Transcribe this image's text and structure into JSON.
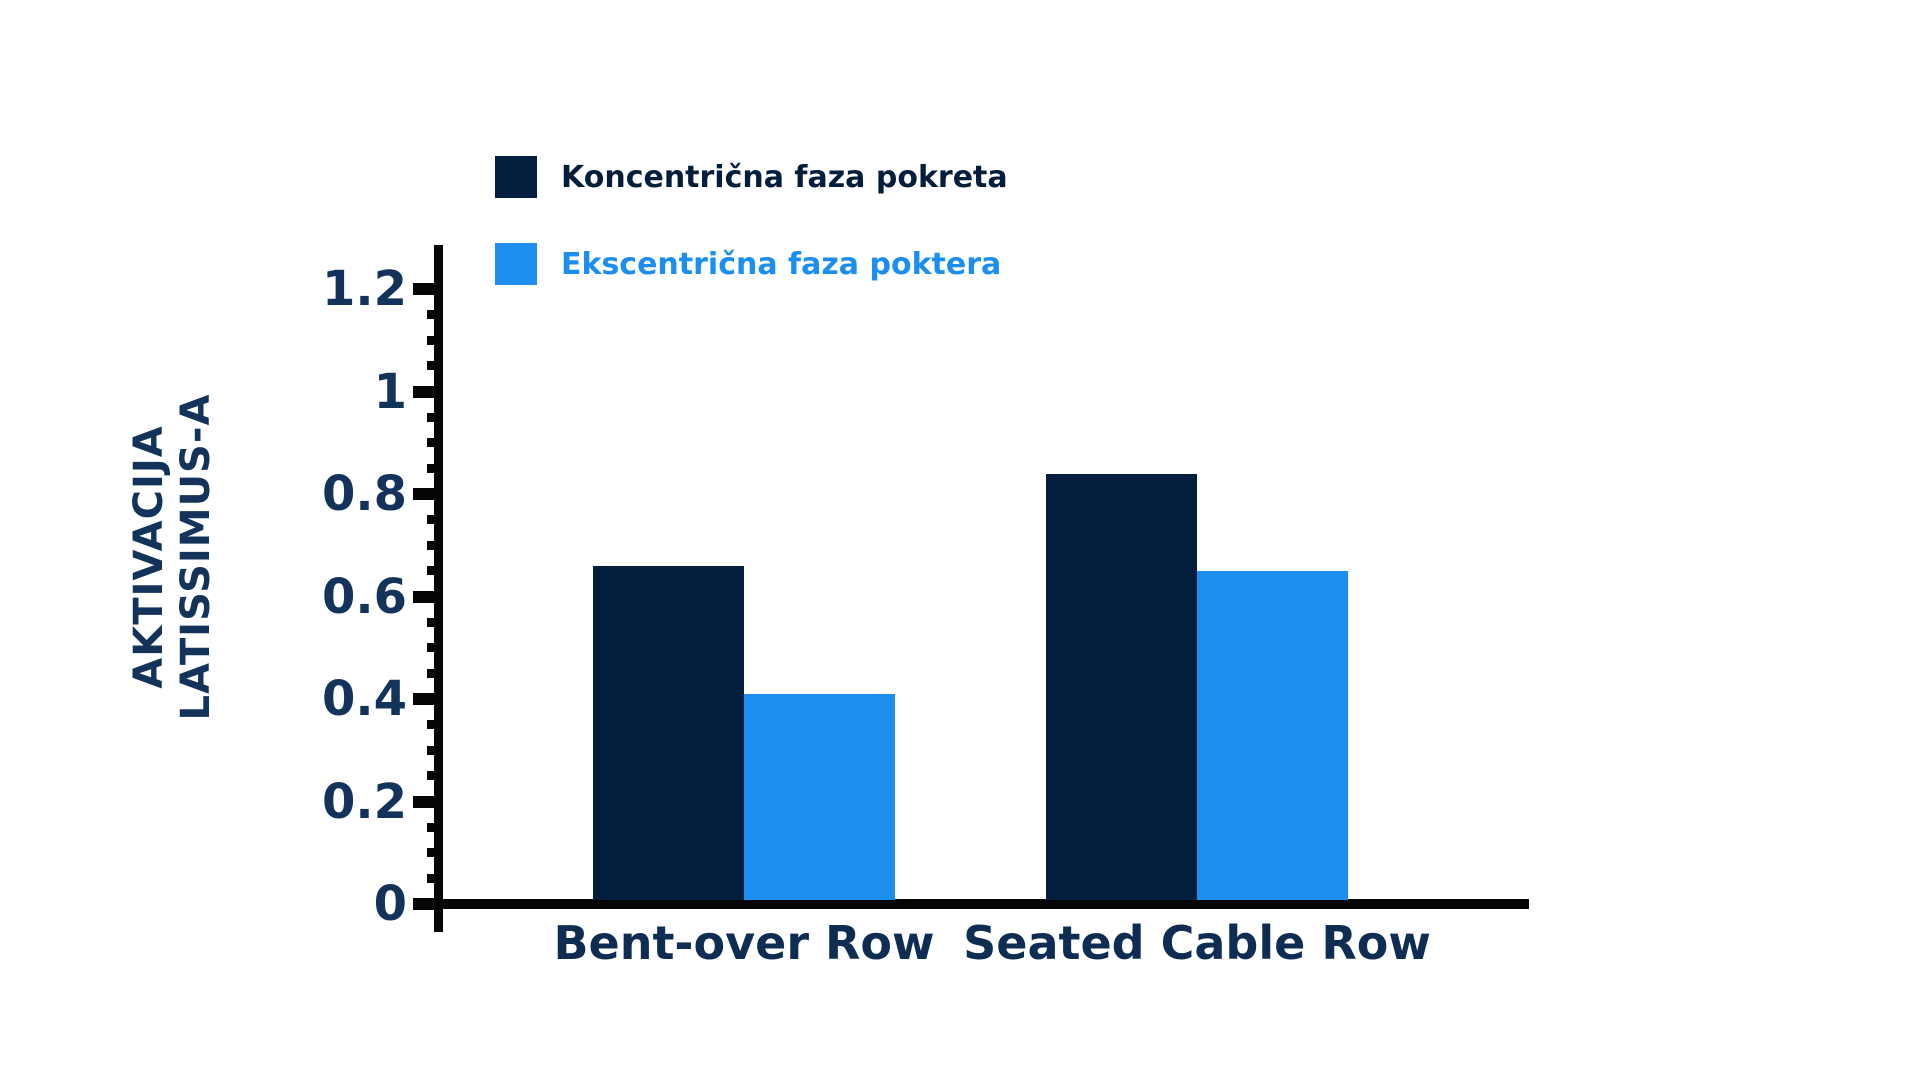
{
  "chart_data": {
    "type": "bar",
    "title": "",
    "categories": [
      "Bent-over Row",
      "Seated Cable Row"
    ],
    "series": [
      {
        "name": "Koncentrična faza pokreta",
        "color": "#031D3C",
        "values": [
          0.66,
          0.84
        ]
      },
      {
        "name": "Ekscentrična faza poktera",
        "color": "#1B8EF0",
        "values": [
          0.41,
          0.65
        ]
      }
    ],
    "xlabel": "",
    "ylabel": "AKTIVACIJA LATISSIMUS-A",
    "ylabel_lines": [
      "AKTIVACIJA",
      "LATISSIMUS-A"
    ],
    "ylim": [
      0,
      1.3
    ],
    "y_ticks": [
      0,
      0.2,
      0.4,
      0.6,
      0.8,
      1,
      1.2
    ],
    "y_tick_labels": [
      "0",
      "0.2",
      "0.4",
      "0.6",
      "0.8",
      "1",
      "1.2"
    ],
    "minor_tick_step": 0.05,
    "grid": "off",
    "legend_position": "top-left"
  },
  "colors": {
    "axis": "#050505",
    "tick_label": "#14335B",
    "category_label": "#0F2D52",
    "background": "#FFFFFF"
  }
}
